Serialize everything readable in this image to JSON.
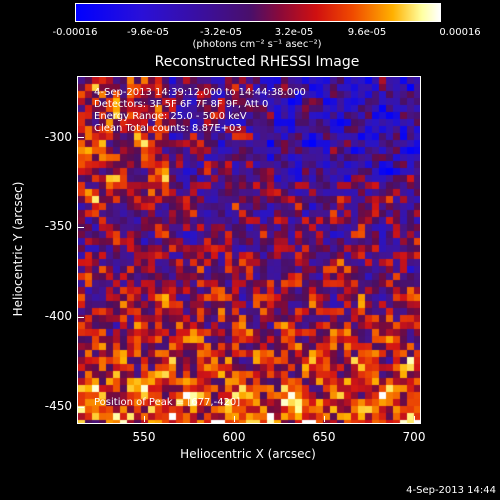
{
  "colorbar": {
    "ticks": [
      "-0.00016",
      "-9.6e-05",
      "-3.2e-05",
      "3.2e-05",
      "9.6e-05",
      "0.00016"
    ],
    "units": "(photons cm⁻² s⁻¹ asec⁻²)"
  },
  "title": "Reconstructed RHESSI Image",
  "info": {
    "time": "4-Sep-2013 14:39:12.000 to 14:44:38.000",
    "detectors": "Detectors: 3F 5F 6F 7F 8F 9F, Att 0",
    "energy": "Energy Range: 25.0 - 50.0 keV",
    "clean": "Clean     Total counts: 8.87E+03",
    "peak": "Position of Peak = [677,-420]"
  },
  "chart_data": {
    "type": "heatmap",
    "title": "Reconstructed RHESSI Image",
    "xlabel": "Heliocentric X (arcsec)",
    "ylabel": "Heliocentric Y (arcsec)",
    "xlim": [
      513,
      703
    ],
    "ylim": [
      -460,
      -268
    ],
    "xticks": [
      "550",
      "600",
      "650",
      "700"
    ],
    "yticks": [
      "-300",
      "-350",
      "-400",
      "-450"
    ],
    "zlim": [
      -0.00016,
      0.00016
    ],
    "peak": [
      677,
      -420
    ]
  },
  "timestamp": "4-Sep-2013 14:44"
}
